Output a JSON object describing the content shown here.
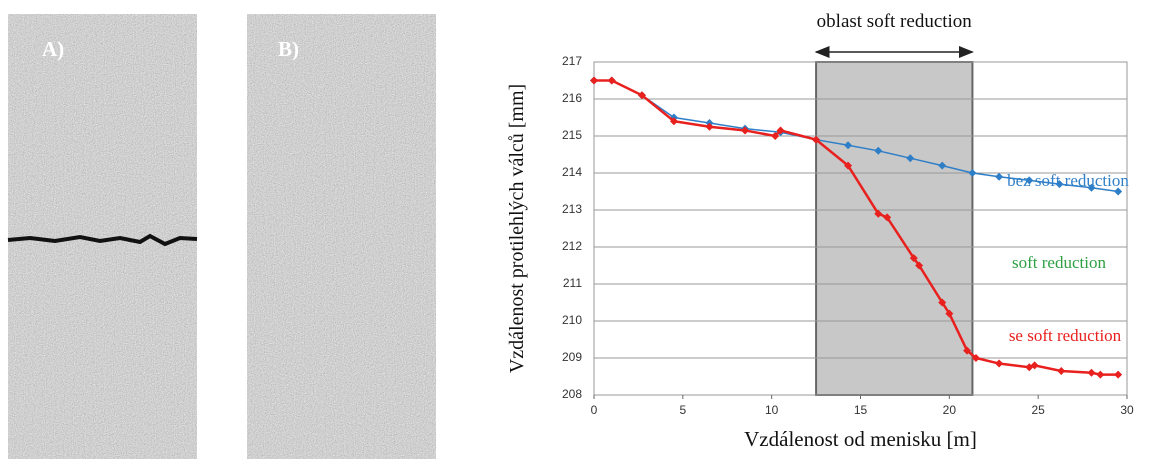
{
  "panels": [
    {
      "label": "A)"
    },
    {
      "label": "B)"
    }
  ],
  "chart_data": {
    "type": "line",
    "xlabel": "Vzdálenost od menisku [m]",
    "ylabel": "Vzdálenost protilehlých válců [mm]",
    "xlim": [
      0,
      30
    ],
    "xticks": [
      0,
      5,
      10,
      15,
      20,
      25,
      30
    ],
    "ylim": [
      208,
      217
    ],
    "yticks": [
      208,
      209,
      210,
      211,
      212,
      213,
      214,
      215,
      216,
      217
    ],
    "grid": true,
    "shaded_region": {
      "label": "oblast soft reduction",
      "x": [
        12.5,
        21.3
      ]
    },
    "annotations": [
      {
        "text": "bez soft reduction",
        "color": "#2f7fc8"
      },
      {
        "text": "soft reduction",
        "color": "#2ea043"
      },
      {
        "text": "se soft reduction",
        "color": "#e8201e"
      }
    ],
    "series": [
      {
        "name": "bez soft reduction",
        "color": "#2f7fc8",
        "x": [
          0,
          1,
          2.7,
          4.5,
          6.5,
          8.5,
          10.5,
          12.5,
          14.3,
          16,
          17.8,
          19.6,
          21.3,
          22.8,
          24.5,
          26.2,
          28,
          29.5
        ],
        "values": [
          216.5,
          216.5,
          216.1,
          215.5,
          215.35,
          215.2,
          215.1,
          214.9,
          214.75,
          214.6,
          214.4,
          214.2,
          214.0,
          213.9,
          213.8,
          213.7,
          213.6,
          213.5
        ]
      },
      {
        "name": "se soft reduction",
        "color": "#e8201e",
        "x": [
          0,
          1,
          2.7,
          4.5,
          6.5,
          8.5,
          10.2,
          10.5,
          12.5,
          14.3,
          16,
          16.5,
          18,
          18.3,
          19.6,
          20,
          21,
          21.5,
          22.8,
          24.5,
          24.8,
          26.3,
          28,
          28.5,
          29.5
        ],
        "values": [
          216.5,
          216.5,
          216.1,
          215.4,
          215.25,
          215.15,
          215.0,
          215.15,
          214.9,
          214.2,
          212.9,
          212.8,
          211.7,
          211.5,
          210.5,
          210.2,
          209.2,
          209.0,
          208.85,
          208.75,
          208.8,
          208.65,
          208.6,
          208.55,
          208.55
        ]
      }
    ]
  }
}
